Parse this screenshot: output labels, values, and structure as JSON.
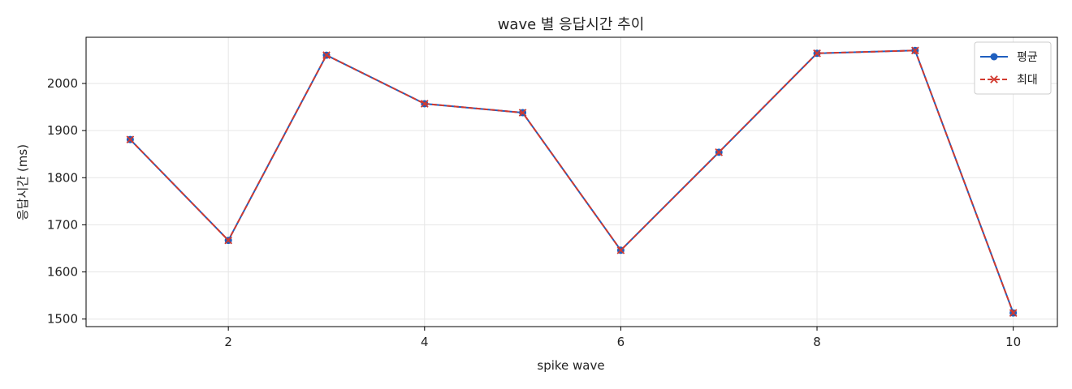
{
  "chart_data": {
    "type": "line",
    "title": "wave 별 응답시간 추이",
    "xlabel": "spike wave",
    "ylabel": "응답시간 (ms)",
    "x": [
      1,
      2,
      3,
      4,
      5,
      6,
      7,
      8,
      9,
      10
    ],
    "xlim": [
      0.55,
      10.45
    ],
    "ylim": [
      1484,
      2098
    ],
    "x_ticks": [
      2,
      4,
      6,
      8,
      10
    ],
    "y_ticks": [
      1500,
      1600,
      1700,
      1800,
      1900,
      2000
    ],
    "grid": true,
    "legend_position": "top-right",
    "series": [
      {
        "name": "평균",
        "values": [
          1881,
          1667,
          2060,
          1957,
          1938,
          1646,
          1854,
          2064,
          2070,
          1513
        ],
        "color": "#1f5fbf",
        "marker": "circle",
        "line_style": "solid"
      },
      {
        "name": "최대",
        "values": [
          1881,
          1667,
          2060,
          1957,
          1938,
          1646,
          1854,
          2064,
          2070,
          1513
        ],
        "color": "#d23a2f",
        "marker": "x",
        "line_style": "dashed"
      }
    ]
  }
}
